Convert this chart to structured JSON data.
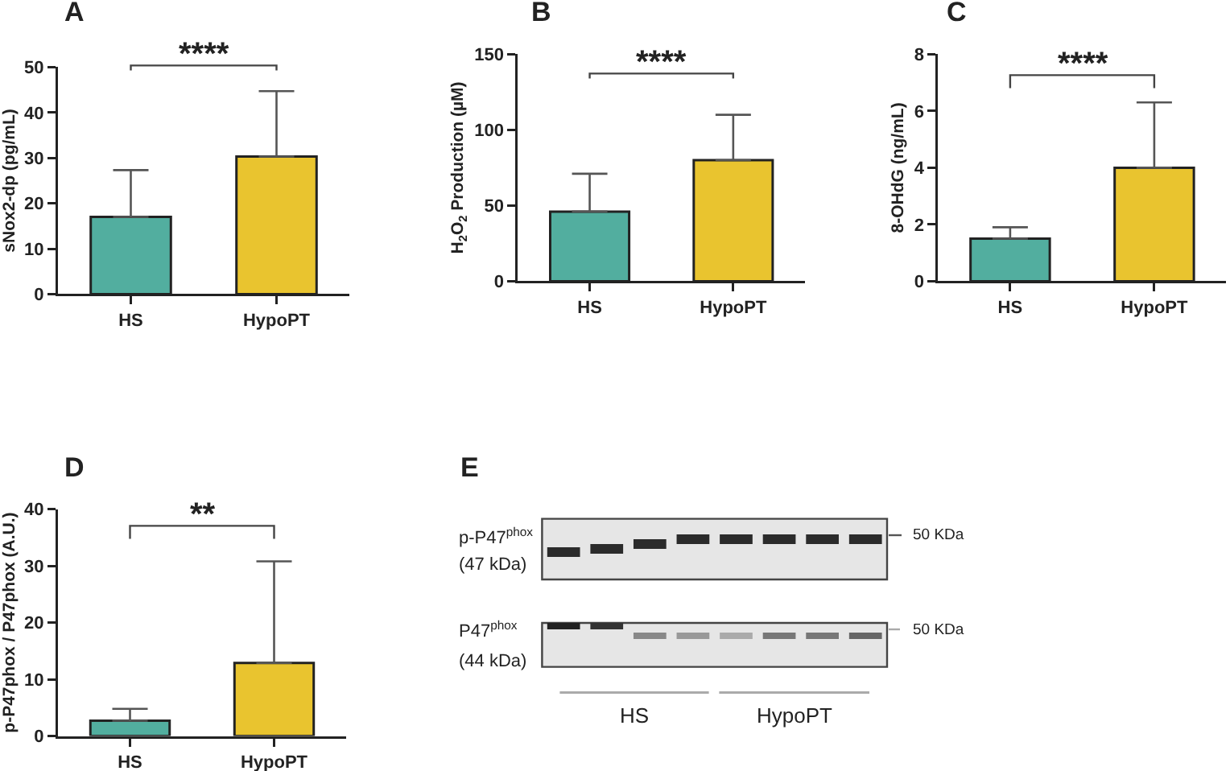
{
  "chart_data": [
    {
      "type": "bar",
      "title": "A",
      "ylabel": "sNox2-dp (pg/mL)",
      "categories": [
        "HS",
        "HypoPT"
      ],
      "values": [
        17,
        30.3
      ],
      "colors": [
        "#52ae9f",
        "#e9c42f"
      ],
      "errors": [
        [
          17,
          27.3
        ],
        [
          30.3,
          44.7
        ]
      ],
      "ylim": [
        0,
        50
      ],
      "yticks": [
        0,
        10,
        20,
        30,
        40,
        50
      ],
      "annotations": [
        "****"
      ]
    },
    {
      "type": "bar",
      "title": "B",
      "ylabel": "H$_{2}$O$_{2}$ Production (µM)",
      "categories": [
        "HS",
        "HypoPT"
      ],
      "values": [
        46,
        80
      ],
      "colors": [
        "#52ae9f",
        "#e9c42f"
      ],
      "errors": [
        [
          46,
          71
        ],
        [
          80,
          110
        ]
      ],
      "ylim": [
        0,
        150
      ],
      "yticks": [
        0,
        50,
        100,
        150
      ],
      "annotations": [
        "****"
      ]
    },
    {
      "type": "bar",
      "title": "C",
      "ylabel": "8-OHdG (ng/mL)",
      "categories": [
        "HS",
        "HypoPT"
      ],
      "values": [
        1.5,
        4
      ],
      "colors": [
        "#52ae9f",
        "#e9c42f"
      ],
      "errors": [
        [
          1.5,
          1.9
        ],
        [
          4,
          6.3
        ]
      ],
      "ylim": [
        0,
        8
      ],
      "yticks": [
        0,
        2,
        4,
        6,
        8
      ],
      "annotations": [
        "****"
      ]
    },
    {
      "type": "bar",
      "title": "D",
      "ylabel": "p-P47phox / P47phox (A.U.)",
      "categories": [
        "HS",
        "HypoPT"
      ],
      "values": [
        2.7,
        12.9
      ],
      "colors": [
        "#52ae9f",
        "#e9c42f"
      ],
      "errors": [
        [
          2.7,
          4.8
        ],
        [
          12.9,
          30.8
        ]
      ],
      "ylim": [
        0,
        40
      ],
      "yticks": [
        0,
        10,
        20,
        30,
        40
      ],
      "annotations": [
        "**"
      ]
    },
    {
      "type": "other",
      "title": "E",
      "annotations": [
        "p-P47$^{phox}$",
        "(47 kDa)",
        "P47$^{phox}$",
        "(44 kDa)",
        "50 KDa",
        "50 KDa",
        "HS",
        "HypoPT"
      ]
    }
  ]
}
